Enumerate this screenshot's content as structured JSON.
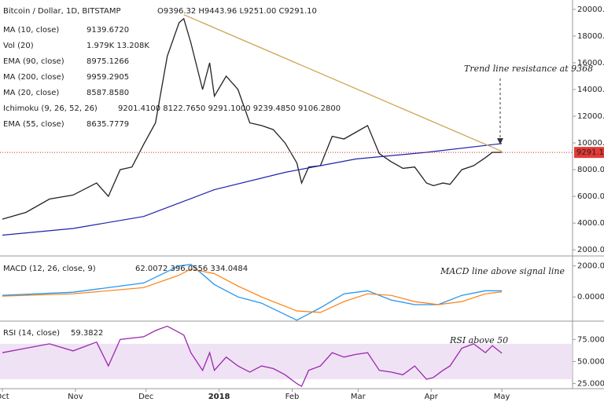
{
  "chart_data": [
    {
      "type": "line",
      "title": "Bitcoin / Dollar, 1D, BITSTAMP",
      "ohlc": "O9396.32 H9443.96 L9251.00 C9291.10",
      "indicators": [
        {
          "name": "MA (10, close)",
          "readout": "9139.6720"
        },
        {
          "name": "Vol (20)",
          "readout": "1.979K  13.208K"
        },
        {
          "name": "EMA (90, close)",
          "readout": "8975.1266"
        },
        {
          "name": "MA (200, close)",
          "readout": "9959.2905"
        },
        {
          "name": "MA (20, close)",
          "readout": "8587.8580"
        },
        {
          "name": "Ichimoku (9, 26, 52, 26)",
          "readout": "9201.4100  8122.7650  9291.1000  9239.4850  9106.2800"
        },
        {
          "name": "EMA (55, close)",
          "readout": "8635.7779"
        }
      ],
      "annotation": "Trend line resistance at 9368",
      "last_price": {
        "value": 9291.1,
        "label": "9291.10"
      },
      "xlim": [
        -1,
        242
      ],
      "ylim": [
        1600,
        20700
      ],
      "yticks": [
        {
          "value": 2000,
          "label": "2000.00"
        },
        {
          "value": 4000,
          "label": "4000.00"
        },
        {
          "value": 6000,
          "label": "6000.00"
        },
        {
          "value": 8000,
          "label": "8000.00"
        },
        {
          "value": 10000,
          "label": "10000.00"
        },
        {
          "value": 12000,
          "label": "12000.00"
        },
        {
          "value": 14000,
          "label": "14000.00"
        },
        {
          "value": 16000,
          "label": "16000.00"
        },
        {
          "value": 18000,
          "label": "18000.00"
        },
        {
          "value": 20000,
          "label": "20000.00"
        }
      ],
      "series": [
        {
          "name": "Close",
          "color": "#222222",
          "x": [
            0,
            10,
            20,
            30,
            40,
            45,
            50,
            55,
            60,
            65,
            70,
            75,
            77,
            80,
            85,
            88,
            90,
            95,
            100,
            105,
            110,
            115,
            120,
            125,
            127,
            130,
            135,
            140,
            145,
            150,
            155,
            160,
            165,
            170,
            175,
            180,
            183,
            187,
            190,
            195,
            200,
            205,
            208,
            212
          ],
          "values": [
            4300,
            4800,
            5800,
            6100,
            7000,
            6000,
            8000,
            8200,
            9900,
            11500,
            16500,
            19000,
            19300,
            17500,
            14000,
            16000,
            13500,
            15000,
            14000,
            11500,
            11300,
            11000,
            10000,
            8500,
            7000,
            8200,
            8300,
            10500,
            10300,
            10800,
            11300,
            9200,
            8600,
            8100,
            8200,
            7000,
            6800,
            7000,
            6900,
            8000,
            8300,
            8900,
            9300,
            9291
          ]
        },
        {
          "name": "MA (200, close)",
          "color": "#1e22aa",
          "x": [
            0,
            30,
            60,
            90,
            120,
            150,
            180,
            212
          ],
          "values": [
            3100,
            3600,
            4500,
            6500,
            7800,
            8800,
            9300,
            9959
          ]
        },
        {
          "name": "Trend line",
          "color": "#c9a04a",
          "x": [
            77,
            212
          ],
          "values": [
            19600,
            9368
          ]
        }
      ]
    },
    {
      "type": "line",
      "title": "MACD (12, 26, close, 9)",
      "readout": "62.0072  396.0556  334.0484",
      "annotation": "MACD line above signal line",
      "xlim": [
        -1,
        242
      ],
      "ylim": [
        -1510,
        2540
      ],
      "yticks": [
        {
          "value": 2000,
          "label": "2000.0000"
        },
        {
          "value": 0,
          "label": "0.0000"
        }
      ],
      "series": [
        {
          "name": "MACD",
          "color": "#2196f3",
          "x": [
            0,
            30,
            60,
            75,
            80,
            90,
            100,
            110,
            125,
            135,
            145,
            155,
            165,
            175,
            185,
            195,
            205,
            212
          ],
          "values": [
            100,
            300,
            900,
            2000,
            2100,
            800,
            0,
            -400,
            -1500,
            -700,
            200,
            400,
            -200,
            -500,
            -500,
            100,
            400,
            396
          ]
        },
        {
          "name": "Signal",
          "color": "#ff7f0e",
          "x": [
            0,
            30,
            60,
            75,
            80,
            90,
            100,
            110,
            125,
            135,
            145,
            155,
            165,
            175,
            185,
            195,
            205,
            212
          ],
          "values": [
            50,
            200,
            600,
            1400,
            1800,
            1500,
            700,
            0,
            -900,
            -1000,
            -300,
            200,
            100,
            -300,
            -500,
            -300,
            200,
            334
          ]
        }
      ]
    },
    {
      "type": "line",
      "title": "RSI (14, close)",
      "readout": "59.3822",
      "annotation": "RSI above 50",
      "xlim": [
        -1,
        242
      ],
      "ylim": [
        19.3,
        94.8
      ],
      "band": [
        30,
        70
      ],
      "yticks": [
        {
          "value": 75,
          "label": "75.0000"
        },
        {
          "value": 50,
          "label": "50.0000"
        },
        {
          "value": 25,
          "label": "25.0000"
        }
      ],
      "xticks": [
        {
          "value": 0,
          "label": "Oct"
        },
        {
          "value": 31,
          "label": "Nov"
        },
        {
          "value": 61,
          "label": "Dec"
        },
        {
          "value": 92,
          "label": "2018"
        },
        {
          "value": 123,
          "label": "Feb"
        },
        {
          "value": 151,
          "label": "Mar"
        },
        {
          "value": 182,
          "label": "Apr"
        },
        {
          "value": 212,
          "label": "May"
        }
      ],
      "series": [
        {
          "name": "RSI",
          "color": "#9c27b0",
          "x": [
            0,
            10,
            20,
            30,
            40,
            45,
            50,
            60,
            65,
            70,
            77,
            80,
            85,
            88,
            90,
            95,
            100,
            105,
            110,
            115,
            120,
            125,
            127,
            130,
            135,
            140,
            145,
            150,
            155,
            160,
            165,
            170,
            175,
            180,
            183,
            187,
            190,
            195,
            200,
            205,
            208,
            212
          ],
          "values": [
            60,
            65,
            70,
            62,
            72,
            45,
            75,
            78,
            85,
            90,
            80,
            60,
            40,
            60,
            40,
            55,
            45,
            38,
            45,
            42,
            35,
            25,
            22,
            40,
            45,
            60,
            55,
            58,
            60,
            40,
            38,
            35,
            45,
            30,
            32,
            40,
            45,
            65,
            70,
            60,
            68,
            59.3822
          ]
        }
      ]
    }
  ]
}
